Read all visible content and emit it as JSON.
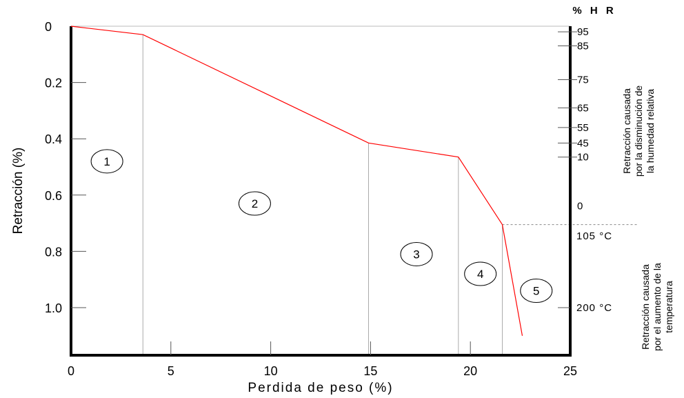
{
  "chart_data": {
    "type": "line",
    "xlabel": "Perdida de peso (%)",
    "ylabel": "Retracción (%)",
    "xlim": [
      0,
      25
    ],
    "ylim": [
      0,
      1.1
    ],
    "y_inverted": true,
    "x_ticks": [
      "0",
      "5",
      "10",
      "15",
      "20",
      "25"
    ],
    "x_tick_values": [
      0,
      5,
      10,
      15,
      20,
      25
    ],
    "y_ticks": [
      "0",
      "0.2",
      "0.4",
      "0.6",
      "0.8",
      "1.0"
    ],
    "y_tick_values": [
      0,
      0.2,
      0.4,
      0.6,
      0.8,
      1.0
    ],
    "line_color": "#ff0000",
    "series": [
      {
        "x": [
          0,
          3.6,
          14.9,
          19.4,
          21.6,
          22.6
        ],
        "y": [
          0,
          0.03,
          0.415,
          0.465,
          0.705,
          1.1
        ]
      }
    ],
    "phase_boundaries_x": [
      3.6,
      14.9,
      19.4,
      21.6
    ],
    "zones": [
      {
        "label": "1",
        "x": 1.8,
        "y": 0.48
      },
      {
        "label": "2",
        "x": 9.2,
        "y": 0.63
      },
      {
        "label": "3",
        "x": 17.3,
        "y": 0.81
      },
      {
        "label": "4",
        "x": 20.5,
        "y": 0.88
      },
      {
        "label": "5",
        "x": 23.3,
        "y": 0.94
      }
    ],
    "right_axis": {
      "title": "% H R",
      "hr_ticks": [
        {
          "label": "95",
          "y": 0.02
        },
        {
          "label": "85",
          "y": 0.07
        },
        {
          "label": "75",
          "y": 0.19
        },
        {
          "label": "65",
          "y": 0.29
        },
        {
          "label": "55",
          "y": 0.36
        },
        {
          "label": "45",
          "y": 0.415
        },
        {
          "label": "10",
          "y": 0.465
        },
        {
          "label": "0",
          "y": 0.67
        }
      ],
      "temp_ticks": [
        {
          "label": "105 °C",
          "y": 0.745
        },
        {
          "label": "200 °C",
          "y": 1.0
        }
      ],
      "dashed_level_y": 0.705,
      "note_hr": [
        "Retracción causada",
        "por la disminución de",
        "la humedad relativa"
      ],
      "note_temp": [
        "Retracción causada",
        "por el aumento de la",
        "temperatura"
      ]
    }
  }
}
